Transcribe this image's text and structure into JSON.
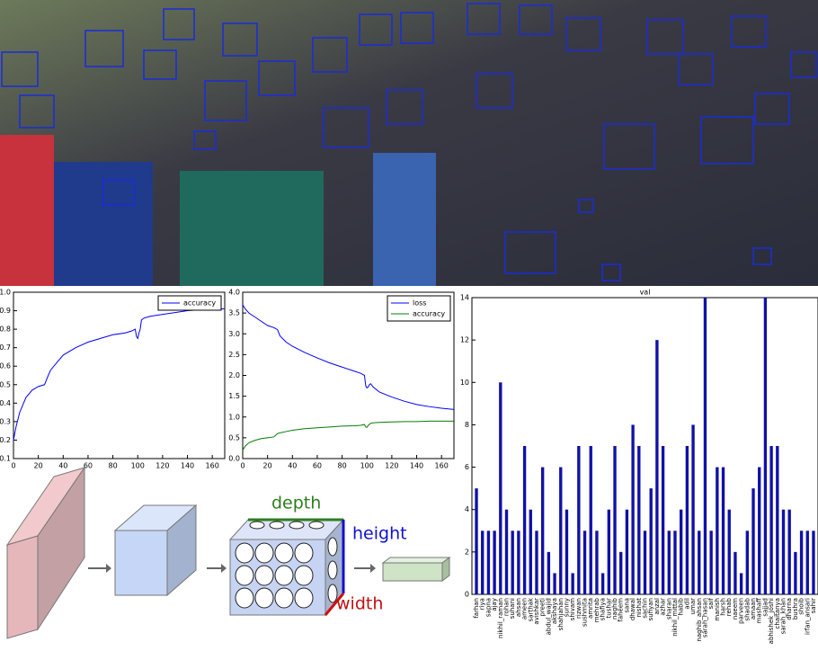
{
  "chart_data": [
    {
      "type": "line",
      "x": [
        0,
        2,
        5,
        10,
        15,
        20,
        25,
        28,
        30,
        35,
        40,
        50,
        60,
        70,
        80,
        90,
        95,
        98,
        99,
        100,
        101,
        102,
        103,
        105,
        110,
        120,
        130,
        140,
        150,
        160,
        170
      ],
      "series": [
        {
          "name": "accuracy",
          "color": "#0000ff",
          "values": [
            0.2,
            0.27,
            0.35,
            0.43,
            0.47,
            0.49,
            0.5,
            0.55,
            0.58,
            0.62,
            0.66,
            0.7,
            0.73,
            0.75,
            0.77,
            0.78,
            0.79,
            0.8,
            0.76,
            0.75,
            0.78,
            0.8,
            0.85,
            0.86,
            0.87,
            0.88,
            0.89,
            0.9,
            0.905,
            0.91,
            0.91
          ]
        }
      ],
      "xlim": [
        0,
        170
      ],
      "xticks": [
        0,
        20,
        40,
        60,
        80,
        100,
        120,
        140,
        160
      ],
      "ylim": [
        0.1,
        1.0
      ],
      "yticks": [
        0.1,
        0.2,
        0.3,
        0.4,
        0.5,
        0.6,
        0.7,
        0.8,
        0.9,
        {
          "value": 1,
          "label": "1.0"
        }
      ],
      "legend": "upper right"
    },
    {
      "type": "line",
      "x": [
        0,
        2,
        5,
        10,
        15,
        20,
        25,
        28,
        30,
        35,
        40,
        50,
        60,
        70,
        80,
        90,
        95,
        98,
        99,
        100,
        101,
        102,
        103,
        105,
        110,
        120,
        130,
        140,
        150,
        160,
        170
      ],
      "series": [
        {
          "name": "loss",
          "color": "#0000ff",
          "values": [
            3.7,
            3.6,
            3.5,
            3.4,
            3.3,
            3.2,
            3.15,
            3.1,
            2.95,
            2.8,
            2.7,
            2.55,
            2.42,
            2.3,
            2.2,
            2.1,
            2.05,
            2.0,
            1.75,
            1.7,
            1.72,
            1.78,
            1.8,
            1.72,
            1.6,
            1.48,
            1.38,
            1.3,
            1.25,
            1.21,
            1.18
          ]
        },
        {
          "name": "accuracy",
          "color": "#008000",
          "values": [
            0.2,
            0.3,
            0.38,
            0.44,
            0.48,
            0.5,
            0.52,
            0.6,
            0.62,
            0.65,
            0.68,
            0.72,
            0.74,
            0.76,
            0.78,
            0.79,
            0.8,
            0.82,
            0.76,
            0.75,
            0.8,
            0.82,
            0.85,
            0.86,
            0.87,
            0.88,
            0.89,
            0.89,
            0.9,
            0.9,
            0.9
          ]
        }
      ],
      "xlim": [
        0,
        170
      ],
      "xticks": [
        0,
        20,
        40,
        60,
        80,
        100,
        120,
        140,
        160
      ],
      "ylim": [
        0,
        4
      ],
      "yticks": [
        {
          "value": 0,
          "label": "0.0"
        },
        0.5,
        {
          "value": 1,
          "label": "1.0"
        },
        1.5,
        {
          "value": 2,
          "label": "2.0"
        },
        2.5,
        {
          "value": 3,
          "label": "3.0"
        },
        3.5,
        {
          "value": 4,
          "label": "4.0"
        }
      ],
      "legend": "upper right"
    },
    {
      "type": "bar",
      "title": "val",
      "color": "#1010a8",
      "categories": [
        "farhan",
        "riya",
        "sapna",
        "ajay",
        "nikhil_raman",
        "rohan",
        "suhani",
        "ahsan",
        "ameen",
        "sarthak",
        "avishkar",
        "preeti",
        "abdul_wajid",
        "akshaya",
        "shahjahan",
        "sunny",
        "shivam",
        "rizwan",
        "sushmita",
        "amrita",
        "mehrab",
        "shafiya",
        "tushar",
        "naghib",
        "faheem",
        "sana",
        "dhawal",
        "nishat",
        "sachin",
        "sufiyan",
        "anzal",
        "azhar",
        "sharan",
        "nikhil_mittal",
        "habib",
        "adil",
        "umar",
        "naghib_ahsan",
        "sarah_hasan",
        "saif",
        "manish",
        "harsh",
        "rehab",
        "naeem",
        "parveen",
        "shadab",
        "amaan",
        "mashaff",
        "sajjad",
        "abhishek_joshi",
        "chaitanya",
        "sarah_khan",
        "dharna",
        "bushra",
        "shoib",
        "irfan_ansari",
        "sahir"
      ],
      "values": [
        5,
        3,
        3,
        3,
        10,
        4,
        3,
        3,
        7,
        4,
        3,
        6,
        2,
        1,
        6,
        4,
        1,
        7,
        3,
        7,
        3,
        1,
        4,
        7,
        2,
        4,
        8,
        7,
        3,
        5,
        12,
        7,
        3,
        3,
        4,
        7,
        8,
        3,
        14,
        3,
        6,
        6,
        4,
        2,
        1,
        3,
        5,
        6,
        14,
        7,
        7,
        4,
        4,
        2,
        3,
        3,
        3
      ],
      "ylim": [
        0,
        14
      ],
      "yticks": [
        0,
        2,
        4,
        6,
        8,
        10,
        12,
        14
      ]
    }
  ],
  "diagram": {
    "labels": [
      "depth",
      "height",
      "width"
    ]
  }
}
